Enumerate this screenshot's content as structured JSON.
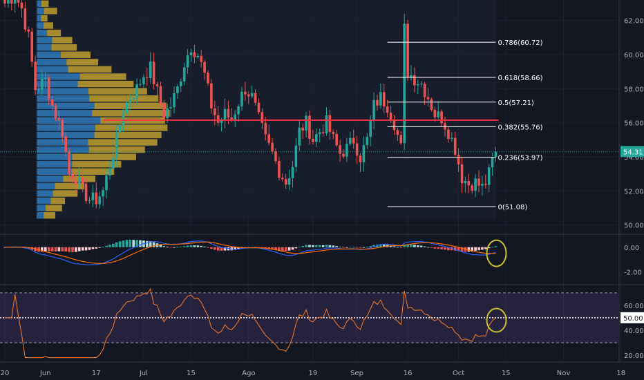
{
  "chart_data": {
    "type": "candlestick",
    "colors": {
      "background": "#131722",
      "up": "#26a69a",
      "down": "#ef5350",
      "poc_line": "#f23645",
      "fib_line": "#ffffff",
      "last_price": "#26a69a",
      "macd_line": "#2962ff",
      "signal_line": "#ff6d00",
      "rsi_line": "#e8762c",
      "annotation_circle": "#c9c330",
      "vp_up": "#2f7fc4",
      "vp_down": "#c9a62f"
    },
    "price_axis": {
      "ylim": [
        49.5,
        63.2
      ],
      "ticks": [
        "50.00",
        "52.00",
        "54.00",
        "56.00",
        "58.00",
        "60.00",
        "62.00"
      ],
      "tick_values": [
        50,
        52,
        54,
        56,
        58,
        60,
        62
      ]
    },
    "last_price": {
      "value": 54.31,
      "label": "54.31"
    },
    "poc_price": 56.15,
    "x_ticks": [
      {
        "label": "20",
        "day": 0
      },
      {
        "label": "Jun",
        "day": 12
      },
      {
        "label": "17",
        "day": 27
      },
      {
        "label": "Jul",
        "day": 41
      },
      {
        "label": "15",
        "day": 55
      },
      {
        "label": "Ago",
        "day": 72
      },
      {
        "label": "19",
        "day": 91
      },
      {
        "label": "Sep",
        "day": 104
      },
      {
        "label": "16",
        "day": 119
      },
      {
        "label": "Oct",
        "day": 134
      },
      {
        "label": "15",
        "day": 148
      },
      {
        "label": "Nov",
        "day": 165
      },
      {
        "label": "18",
        "day": 182
      }
    ],
    "fib_levels": [
      {
        "label": "0.786(60.72)",
        "value": 60.72
      },
      {
        "label": "0.618(58.66)",
        "value": 58.66
      },
      {
        "label": "0.5(57.21)",
        "value": 57.21
      },
      {
        "label": "0.382(55.76)",
        "value": 55.76
      },
      {
        "label": "0.236(53.97)",
        "value": 53.97
      },
      {
        "label": "0(51.08)",
        "value": 51.08
      }
    ],
    "fib_start_day": 113,
    "fib_end_day": 145,
    "price_anchors": [
      [
        0,
        63.0
      ],
      [
        3,
        63.5
      ],
      [
        5,
        62.7
      ],
      [
        7,
        61.0
      ],
      [
        9,
        58.0
      ],
      [
        12,
        58.5
      ],
      [
        14,
        57.0
      ],
      [
        17,
        55.5
      ],
      [
        19,
        53.0
      ],
      [
        21,
        52.8
      ],
      [
        23,
        52.0
      ],
      [
        25,
        51.5
      ],
      [
        27,
        51.5
      ],
      [
        29,
        52.0
      ],
      [
        31,
        53.5
      ],
      [
        33,
        55.0
      ],
      [
        35,
        56.8
      ],
      [
        37,
        57.5
      ],
      [
        39,
        58.0
      ],
      [
        41,
        58.8
      ],
      [
        43,
        59.2
      ],
      [
        45,
        57.8
      ],
      [
        47,
        56.5
      ],
      [
        49,
        57.0
      ],
      [
        51,
        58.0
      ],
      [
        53,
        59.5
      ],
      [
        55,
        60.5
      ],
      [
        57,
        60.0
      ],
      [
        59,
        58.8
      ],
      [
        61,
        57.0
      ],
      [
        63,
        56.0
      ],
      [
        65,
        56.5
      ],
      [
        67,
        56.2
      ],
      [
        69,
        57.2
      ],
      [
        71,
        58.0
      ],
      [
        73,
        57.5
      ],
      [
        75,
        56.2
      ],
      [
        77,
        55.0
      ],
      [
        79,
        54.2
      ],
      [
        81,
        53.2
      ],
      [
        83,
        52.5
      ],
      [
        85,
        53.5
      ],
      [
        87,
        55.5
      ],
      [
        89,
        56.0
      ],
      [
        91,
        55.0
      ],
      [
        93,
        55.5
      ],
      [
        95,
        56.0
      ],
      [
        97,
        55.0
      ],
      [
        99,
        54.2
      ],
      [
        101,
        54.5
      ],
      [
        103,
        55.0
      ],
      [
        105,
        54.0
      ],
      [
        107,
        55.0
      ],
      [
        109,
        57.0
      ],
      [
        111,
        57.5
      ],
      [
        113,
        57.0
      ],
      [
        115,
        56.0
      ],
      [
        117,
        54.5
      ],
      [
        118,
        61.5
      ],
      [
        119,
        59.0
      ],
      [
        121,
        58.6
      ],
      [
        123,
        58.3
      ],
      [
        125,
        57.5
      ],
      [
        127,
        56.5
      ],
      [
        129,
        56.3
      ],
      [
        131,
        55.5
      ],
      [
        133,
        54.5
      ],
      [
        135,
        52.8
      ],
      [
        137,
        52.4
      ],
      [
        139,
        52.5
      ],
      [
        141,
        52.2
      ],
      [
        142,
        52.5
      ],
      [
        143,
        53.0
      ],
      [
        144,
        53.8
      ],
      [
        145,
        54.31
      ]
    ],
    "macd_axis": {
      "ylim": [
        -3.0,
        1.0
      ],
      "ticks": [
        "0.00",
        "-2.00"
      ],
      "tick_values": [
        0,
        -2
      ]
    },
    "rsi_axis": {
      "ylim": [
        15,
        76
      ],
      "ticks": [
        "60.00",
        "50.00",
        "40.00",
        "20.00"
      ],
      "tick_values": [
        60,
        50,
        40,
        20
      ],
      "current_label": "50.00",
      "current_value": 50,
      "band_upper": 70,
      "band_lower": 30
    }
  }
}
